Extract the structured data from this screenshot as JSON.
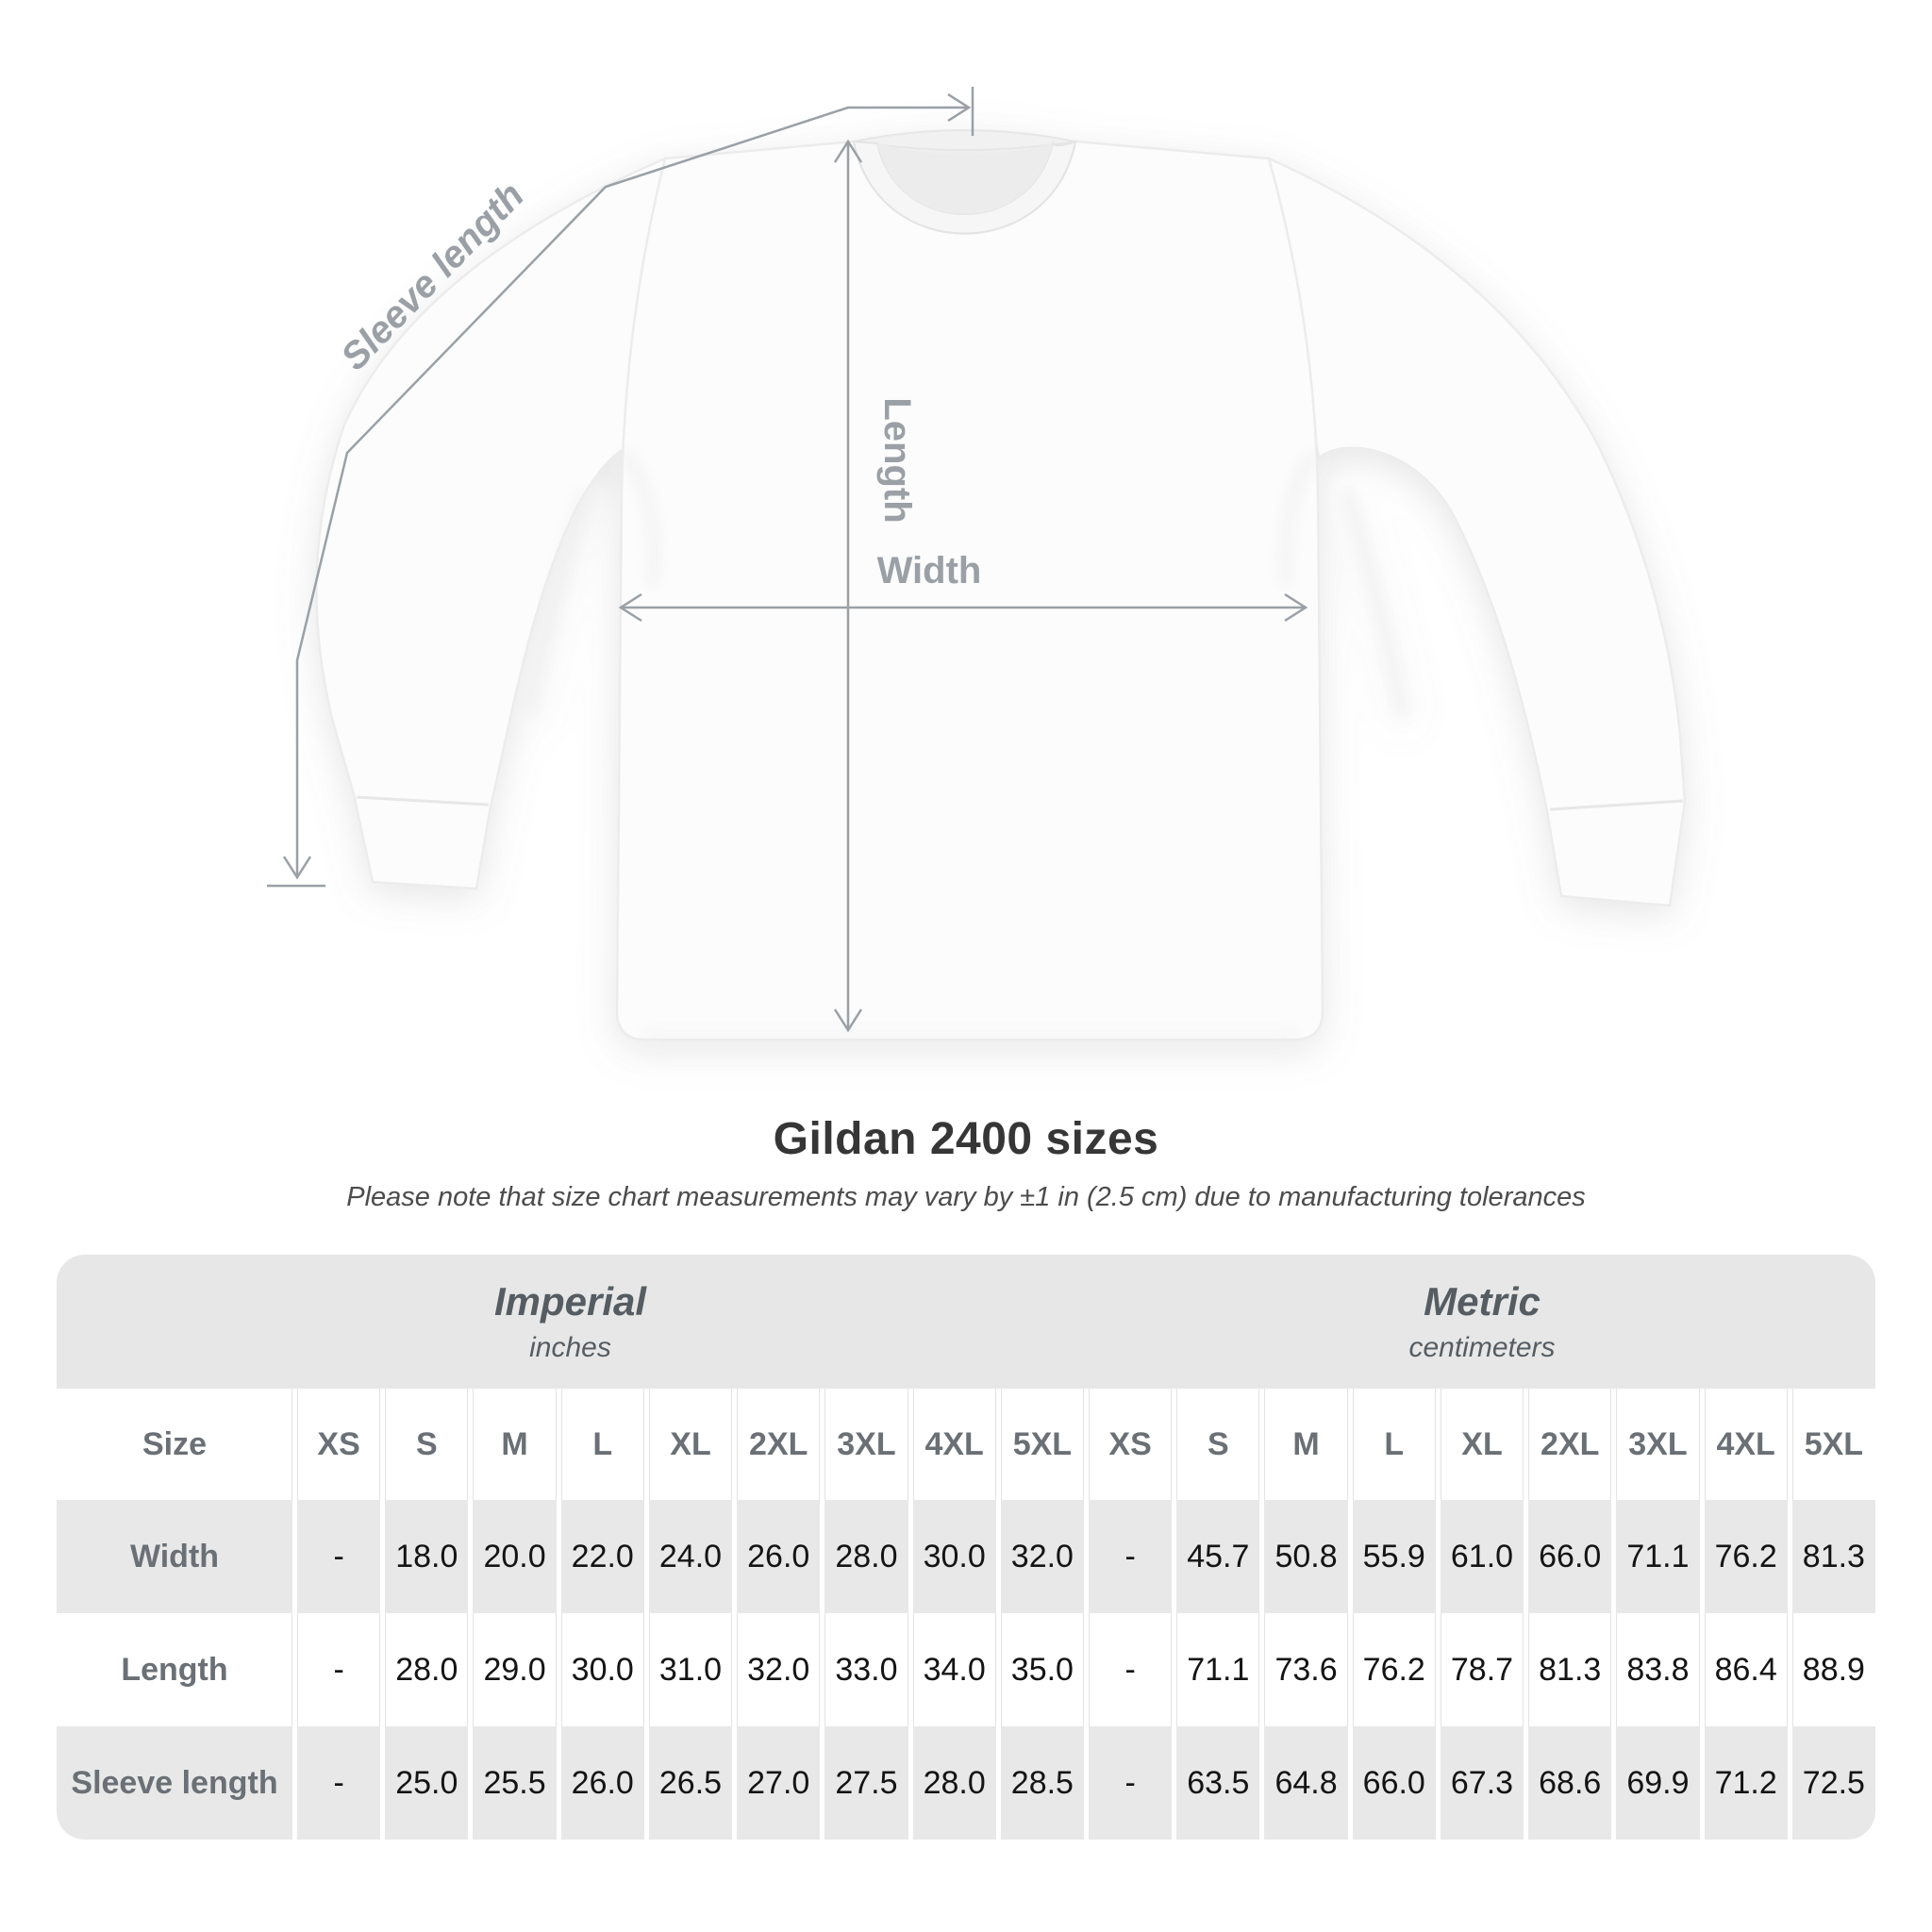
{
  "figure": {
    "sleeve_label": "Sleeve length",
    "length_label": "Length",
    "width_label": "Width"
  },
  "chart_data": {
    "type": "table",
    "title": "Gildan 2400 sizes",
    "subtitle": "Please note that size chart measurements may vary by ±1 in (2.5 cm) due to manufacturing tolerances",
    "unit_groups": [
      {
        "label": "Imperial",
        "unit": "inches"
      },
      {
        "label": "Metric",
        "unit": "centimeters"
      }
    ],
    "size_header": "Size",
    "sizes": [
      "XS",
      "S",
      "M",
      "L",
      "XL",
      "2XL",
      "3XL",
      "4XL",
      "5XL"
    ],
    "rows": [
      {
        "label": "Width",
        "imperial": [
          "-",
          "18.0",
          "20.0",
          "22.0",
          "24.0",
          "26.0",
          "28.0",
          "30.0",
          "32.0"
        ],
        "metric": [
          "-",
          "45.7",
          "50.8",
          "55.9",
          "61.0",
          "66.0",
          "71.1",
          "76.2",
          "81.3"
        ]
      },
      {
        "label": "Length",
        "imperial": [
          "-",
          "28.0",
          "29.0",
          "30.0",
          "31.0",
          "32.0",
          "33.0",
          "34.0",
          "35.0"
        ],
        "metric": [
          "-",
          "71.1",
          "73.6",
          "76.2",
          "78.7",
          "81.3",
          "83.8",
          "86.4",
          "88.9"
        ]
      },
      {
        "label": "Sleeve length",
        "imperial": [
          "-",
          "25.0",
          "25.5",
          "26.0",
          "26.5",
          "27.0",
          "27.5",
          "28.0",
          "28.5"
        ],
        "metric": [
          "-",
          "63.5",
          "64.8",
          "66.0",
          "67.3",
          "68.6",
          "69.9",
          "71.2",
          "72.5"
        ]
      }
    ]
  },
  "colors": {
    "annotation_gray": "#9aa0a6",
    "table_band_gray": "#e7e7e7",
    "table_row_gray": "#e8e8e8",
    "label_gray": "#6a7075",
    "title_dark": "#363636",
    "value_black": "#141414"
  }
}
